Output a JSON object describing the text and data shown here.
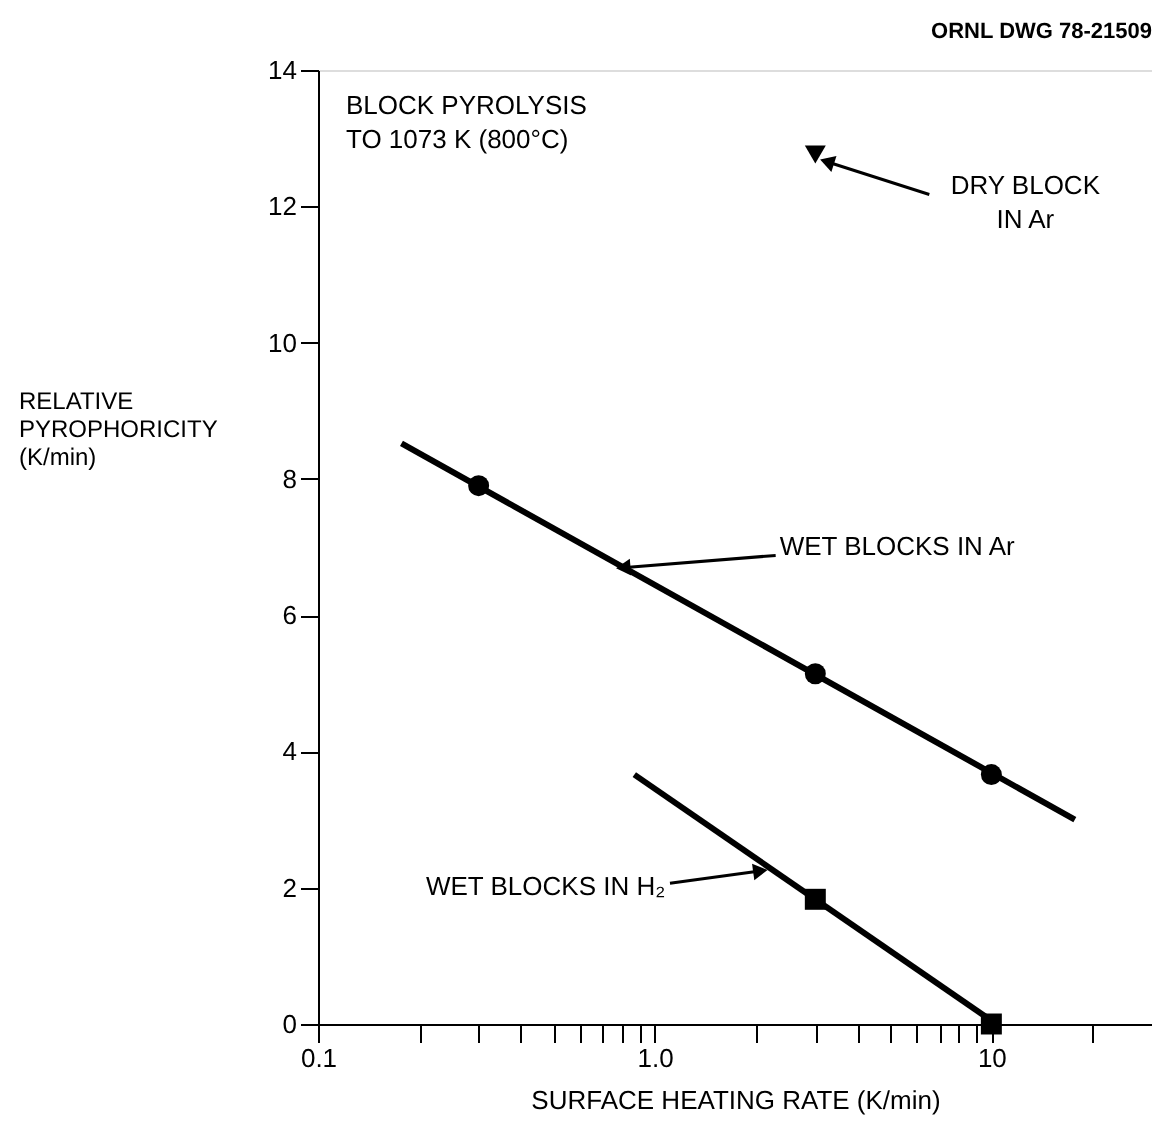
{
  "chart_data": {
    "type": "scatter",
    "title": "ORNL DWG 78-21509",
    "xlabel": "SURFACE HEATING RATE (K/min)",
    "ylabel": "RELATIVE\nPYROPHORICITY\n(K/min)",
    "log": "x",
    "xlim": [
      0.1,
      30
    ],
    "ylim": [
      0,
      14
    ],
    "xticks": [
      0.1,
      {
        "value": 0.2,
        "label": null
      },
      {
        "value": 0.3,
        "label": null
      },
      {
        "value": 0.4,
        "label": null
      },
      {
        "value": 0.5,
        "label": null
      },
      {
        "value": 0.6,
        "label": null
      },
      {
        "value": 0.7,
        "label": null
      },
      {
        "value": 0.8,
        "label": null
      },
      {
        "value": 0.9,
        "label": null
      },
      {
        "value": 1,
        "label": "1.0"
      },
      {
        "value": 2,
        "label": null
      },
      {
        "value": 3,
        "label": null
      },
      {
        "value": 4,
        "label": null
      },
      {
        "value": 5,
        "label": null
      },
      {
        "value": 6,
        "label": null
      },
      {
        "value": 7,
        "label": null
      },
      {
        "value": 8,
        "label": null
      },
      {
        "value": 9,
        "label": null
      },
      10,
      {
        "value": 20,
        "label": null
      }
    ],
    "yticks": [
      0,
      2,
      4,
      6,
      8,
      10,
      12,
      14
    ],
    "grid": false,
    "series": [
      {
        "type": "line",
        "color": "#000000",
        "x": [
          0.177,
          17.7
        ],
        "values": [
          8.52,
          3.0
        ],
        "line_style": "solid"
      },
      {
        "type": "line",
        "color": "#000000",
        "x": [
          0.87,
          10
        ],
        "values": [
          3.66,
          0.05
        ],
        "line_style": "solid"
      },
      {
        "marker": "circle",
        "color": "#000000",
        "x": [
          0.3,
          3,
          10
        ],
        "values": [
          7.9,
          5.14,
          3.66
        ]
      },
      {
        "marker": "square",
        "color": "#000000",
        "x": [
          3,
          10
        ],
        "values": [
          1.83,
          0.0
        ]
      },
      {
        "marker": "triangle",
        "color": "#000000",
        "x": [
          3
        ],
        "values": [
          12.76
        ]
      }
    ],
    "annotations": [
      "BLOCK PYROLYSIS\nTO 1073 K (800°C)",
      {
        "text": "DRY BLOCK\nIN Ar",
        "x": 3,
        "y": 12.76
      },
      {
        "text": "WET BLOCKS IN Ar",
        "x": 0.82,
        "y": 6.7
      },
      {
        "text": "WET BLOCKS IN H₂",
        "x": 2.2,
        "y": 2.3
      }
    ]
  }
}
